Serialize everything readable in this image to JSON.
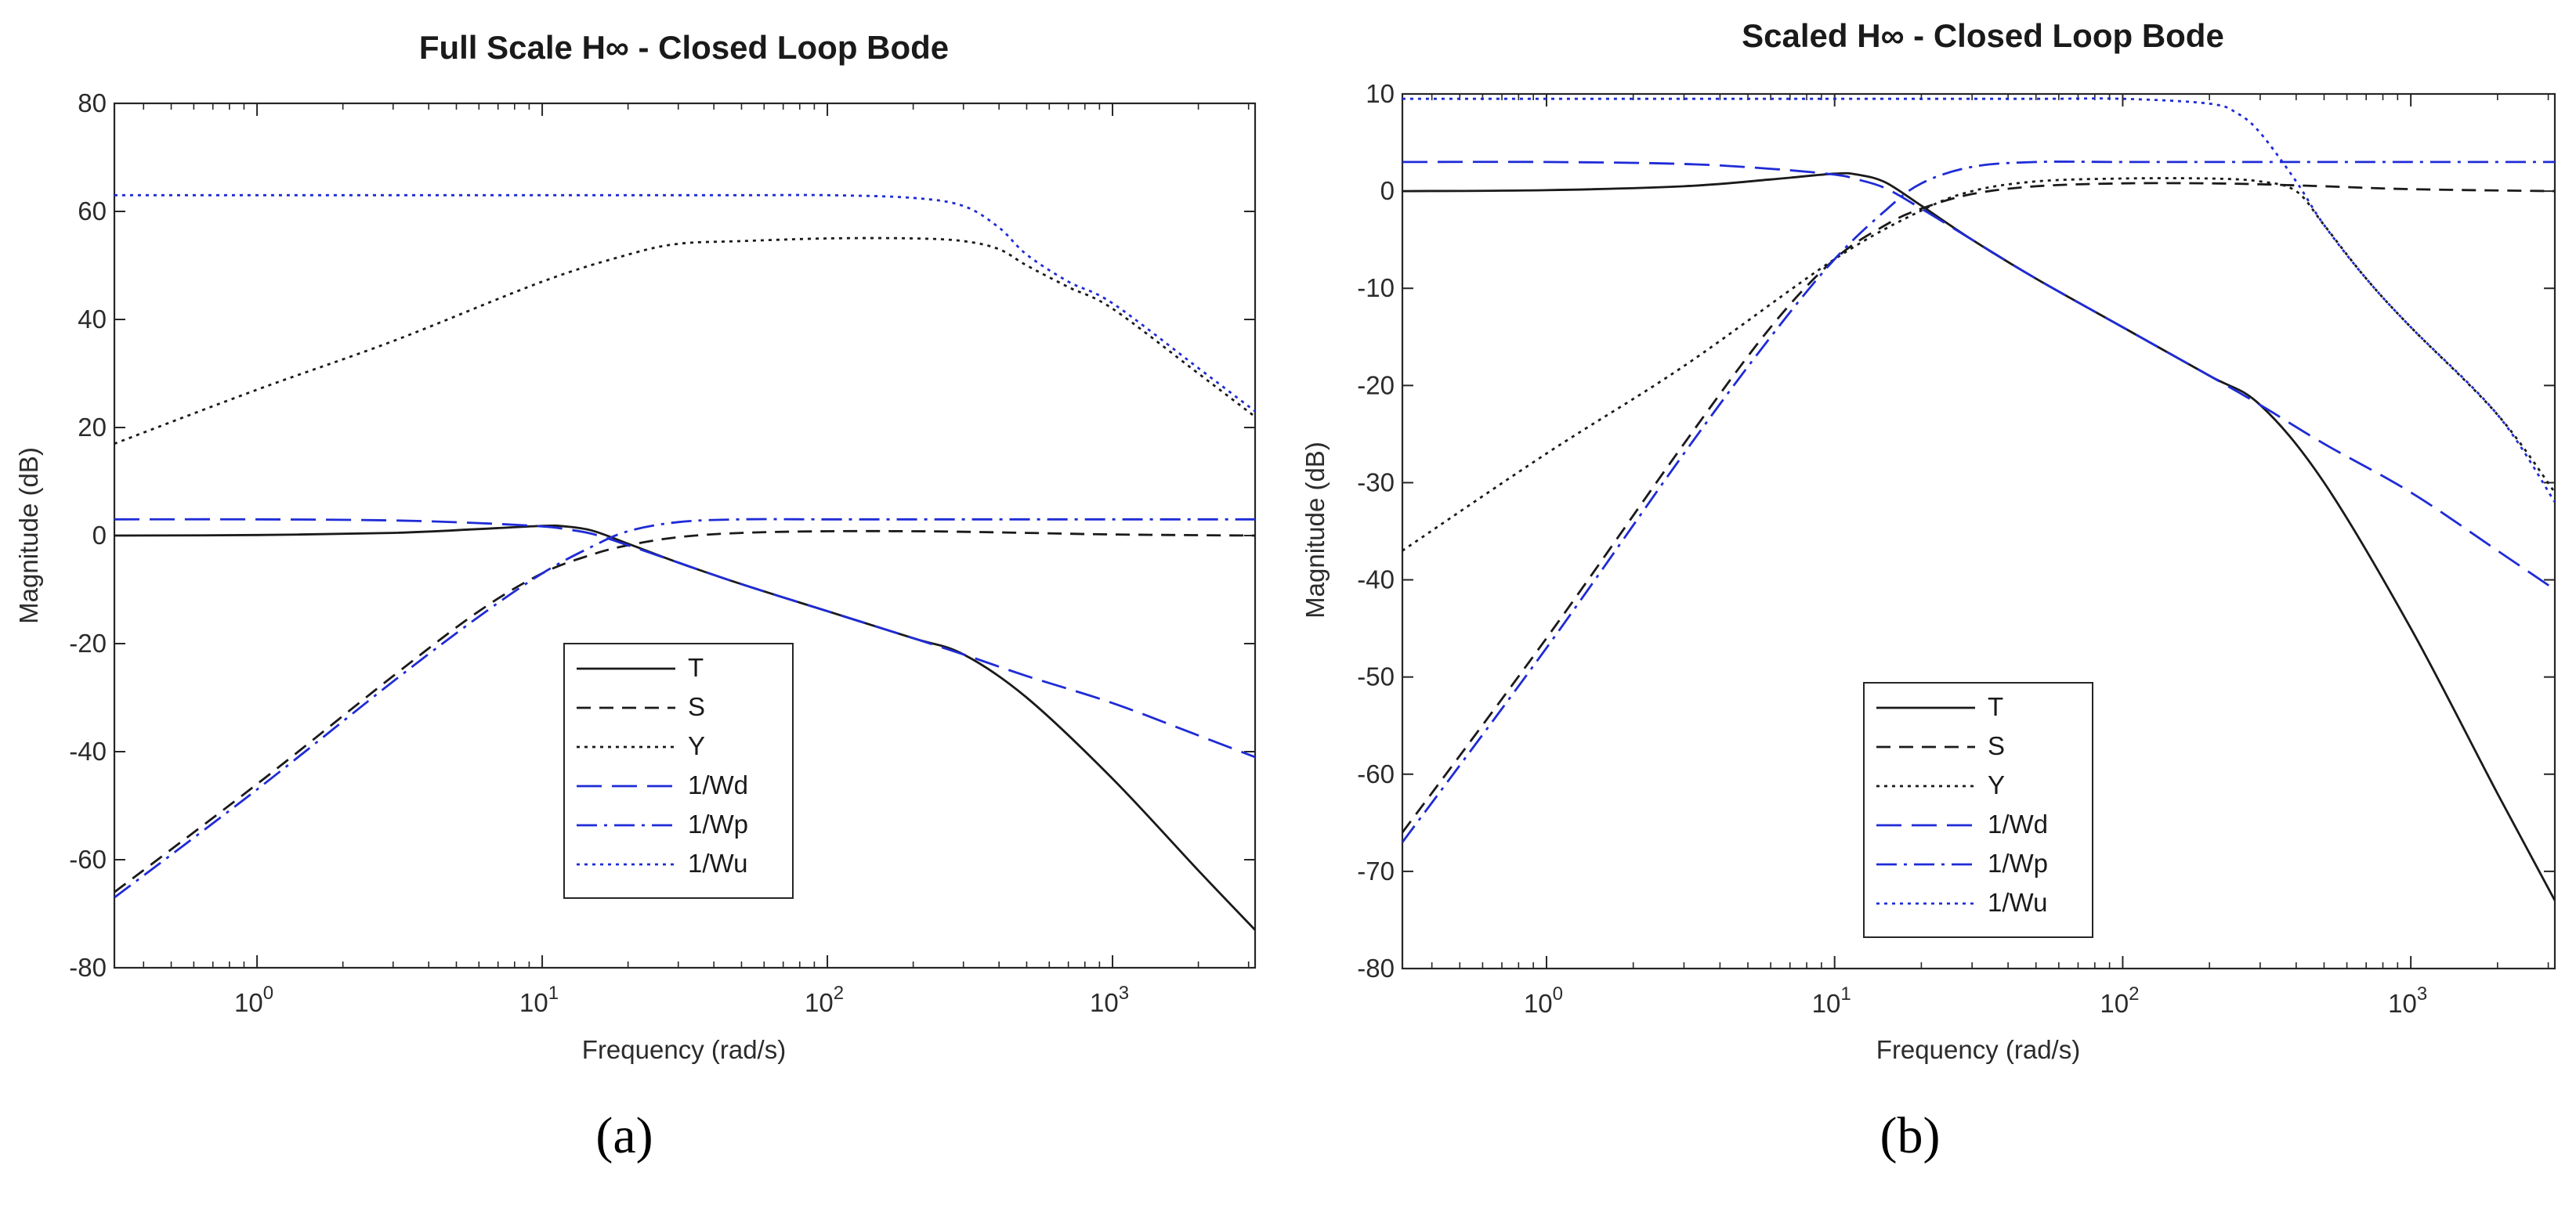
{
  "chart_data": [
    {
      "type": "line",
      "panel": "a",
      "title": "Full Scale H∞ - Closed Loop Bode",
      "caption": "(a)",
      "xlabel": "Frequency (rad/s)",
      "ylabel": "Magnitude (dB)",
      "xscale": "log",
      "xlim": [
        0.316,
        3162
      ],
      "ylim": [
        -80,
        80
      ],
      "yticks": [
        80,
        60,
        40,
        20,
        0,
        -20,
        -40,
        -60,
        -80
      ],
      "xticks": [
        {
          "value": 1,
          "base": "10",
          "exp": "0"
        },
        {
          "value": 10,
          "base": "10",
          "exp": "1"
        },
        {
          "value": 100,
          "base": "10",
          "exp": "2"
        },
        {
          "value": 1000,
          "base": "10",
          "exp": "3"
        }
      ],
      "grid": false,
      "legend_position": "bottom-center",
      "series": [
        {
          "name": "T",
          "color": "#1a1a1a",
          "dash": "solid",
          "x": [
            0.316,
            1,
            3,
            6,
            10,
            12,
            15,
            20,
            30,
            50,
            100,
            200,
            300,
            500,
            1000,
            2000,
            3162
          ],
          "y": [
            0,
            0.1,
            0.5,
            1.2,
            1.8,
            1.7,
            0.9,
            -1.5,
            -5,
            -9,
            -14,
            -19,
            -22,
            -30,
            -45,
            -62,
            -73
          ]
        },
        {
          "name": "S",
          "color": "#1a1a1a",
          "dash": "dash",
          "x": [
            0.316,
            1,
            3,
            6,
            10,
            15,
            20,
            30,
            50,
            100,
            200,
            300,
            500,
            1000,
            3162
          ],
          "y": [
            -66,
            -46,
            -26,
            -14,
            -7,
            -3.5,
            -1.8,
            -0.3,
            0.5,
            0.8,
            0.8,
            0.7,
            0.5,
            0.2,
            0
          ]
        },
        {
          "name": "Y",
          "color": "#1a1a1a",
          "dash": "dot",
          "x": [
            0.316,
            1,
            3,
            10,
            20,
            30,
            50,
            100,
            200,
            300,
            400,
            500,
            700,
            1000,
            2000,
            3162
          ],
          "y": [
            17,
            27,
            36,
            47,
            52,
            54,
            54.5,
            55,
            55,
            54.5,
            53,
            50,
            46,
            42,
            30,
            22
          ]
        },
        {
          "name": "1/Wd",
          "color": "#1f2bd6",
          "dash": "longdash",
          "x": [
            0.316,
            1,
            3,
            6,
            10,
            12,
            15,
            20,
            30,
            50,
            100,
            200,
            300,
            500,
            1000,
            2000,
            3162
          ],
          "y": [
            3,
            3,
            2.8,
            2.3,
            1.7,
            1.2,
            0.3,
            -1.8,
            -5,
            -9,
            -14,
            -19,
            -22,
            -26,
            -31,
            -37,
            -41
          ]
        },
        {
          "name": "1/Wp",
          "color": "#1f2bd6",
          "dash": "dashdot",
          "x": [
            0.316,
            1,
            3,
            6,
            10,
            15,
            20,
            30,
            50,
            100,
            300,
            1000,
            3162
          ],
          "y": [
            -67,
            -47,
            -27,
            -15,
            -7,
            -2,
            0.8,
            2.5,
            3,
            3,
            3,
            3,
            3
          ]
        },
        {
          "name": "1/Wu",
          "color": "#1f2bd6",
          "dash": "dot",
          "x": [
            0.316,
            1,
            10,
            50,
            100,
            200,
            300,
            400,
            500,
            700,
            1000,
            2000,
            3162
          ],
          "y": [
            63,
            63,
            63,
            63,
            63,
            62.5,
            61,
            57,
            52,
            47,
            43,
            31,
            23
          ]
        }
      ]
    },
    {
      "type": "line",
      "panel": "b",
      "title": "Scaled H∞ - Closed Loop Bode",
      "caption": "(b)",
      "xlabel": "Frequency (rad/s)",
      "ylabel": "Magnitude (dB)",
      "xscale": "log",
      "xlim": [
        0.316,
        3162
      ],
      "ylim": [
        -80,
        10
      ],
      "yticks": [
        10,
        0,
        -10,
        -20,
        -30,
        -40,
        -50,
        -60,
        -70,
        -80
      ],
      "xticks": [
        {
          "value": 1,
          "base": "10",
          "exp": "0"
        },
        {
          "value": 10,
          "base": "10",
          "exp": "1"
        },
        {
          "value": 100,
          "base": "10",
          "exp": "2"
        },
        {
          "value": 1000,
          "base": "10",
          "exp": "3"
        }
      ],
      "grid": false,
      "legend_position": "bottom-center",
      "series": [
        {
          "name": "T",
          "color": "#1a1a1a",
          "dash": "solid",
          "x": [
            0.316,
            1,
            3,
            6,
            10,
            12,
            15,
            20,
            30,
            50,
            100,
            200,
            300,
            500,
            1000,
            2000,
            3162
          ],
          "y": [
            0,
            0.1,
            0.5,
            1.2,
            1.8,
            1.7,
            0.9,
            -1.5,
            -5,
            -9,
            -14,
            -19,
            -22,
            -30,
            -45,
            -62,
            -73
          ]
        },
        {
          "name": "S",
          "color": "#1a1a1a",
          "dash": "dash",
          "x": [
            0.316,
            1,
            3,
            6,
            10,
            15,
            20,
            30,
            50,
            100,
            200,
            300,
            500,
            1000,
            3162
          ],
          "y": [
            -66,
            -46,
            -26,
            -14,
            -7,
            -3.5,
            -1.8,
            -0.3,
            0.5,
            0.8,
            0.8,
            0.7,
            0.5,
            0.2,
            0
          ]
        },
        {
          "name": "Y",
          "color": "#1a1a1a",
          "dash": "dot",
          "x": [
            0.316,
            1,
            3,
            10,
            20,
            30,
            50,
            100,
            200,
            300,
            400,
            500,
            700,
            1000,
            2000,
            3162
          ],
          "y": [
            -37,
            -27,
            -18,
            -7,
            -2,
            0,
            1,
            1.3,
            1.3,
            1,
            0,
            -3.5,
            -9,
            -14,
            -23,
            -31
          ]
        },
        {
          "name": "1/Wd",
          "color": "#1f2bd6",
          "dash": "longdash",
          "x": [
            0.316,
            1,
            3,
            6,
            10,
            12,
            15,
            20,
            30,
            50,
            100,
            200,
            300,
            500,
            1000,
            2000,
            3162
          ],
          "y": [
            3,
            3,
            2.8,
            2.3,
            1.7,
            1.2,
            0.3,
            -1.8,
            -5,
            -9,
            -14,
            -19,
            -22,
            -26,
            -31,
            -37,
            -41
          ]
        },
        {
          "name": "1/Wp",
          "color": "#1f2bd6",
          "dash": "dashdot",
          "x": [
            0.316,
            1,
            3,
            6,
            10,
            15,
            20,
            30,
            50,
            100,
            300,
            1000,
            3162
          ],
          "y": [
            -67,
            -47,
            -27,
            -15,
            -7,
            -2,
            0.8,
            2.5,
            3,
            3,
            3,
            3,
            3
          ]
        },
        {
          "name": "1/Wu",
          "color": "#1f2bd6",
          "dash": "dot",
          "x": [
            0.316,
            1,
            10,
            50,
            100,
            200,
            250,
            300,
            400,
            500,
            700,
            1000,
            2000,
            3162
          ],
          "y": [
            9.5,
            9.5,
            9.5,
            9.5,
            9.5,
            9,
            8,
            6,
            1,
            -3.5,
            -9,
            -14,
            -23,
            -32
          ]
        }
      ]
    }
  ]
}
